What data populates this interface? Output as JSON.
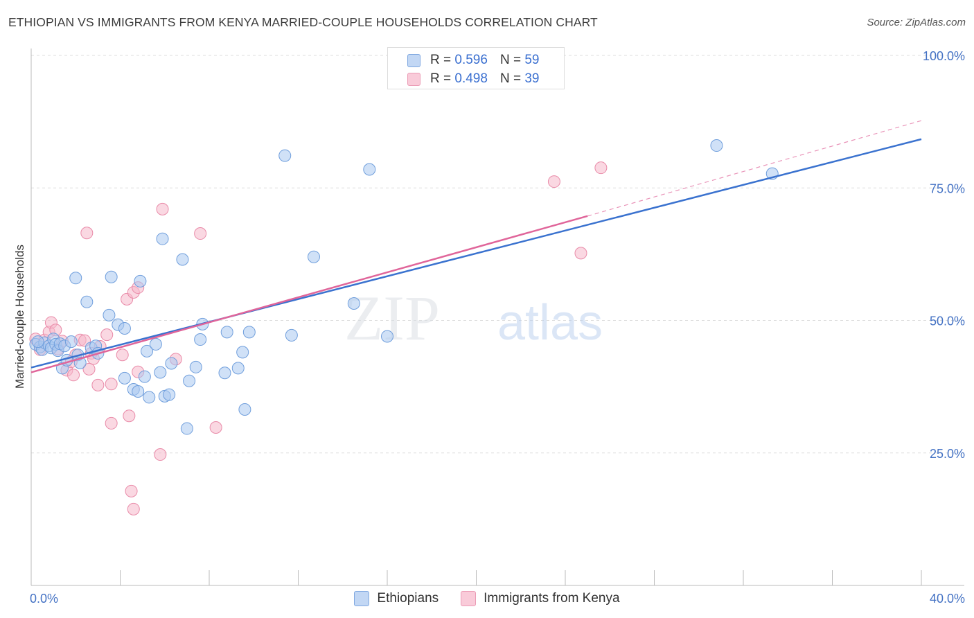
{
  "header": {
    "title": "ETHIOPIAN VS IMMIGRANTS FROM KENYA MARRIED-COUPLE HOUSEHOLDS CORRELATION CHART",
    "source": "Source: ZipAtlas.com"
  },
  "watermark": {
    "zip": "ZIP",
    "atlas": "atlas"
  },
  "legend_top": {
    "rows": [
      {
        "r_label": "R =",
        "r_value": "0.596",
        "n_label": "N =",
        "n_value": "59"
      },
      {
        "r_label": "R =",
        "r_value": "0.498",
        "n_label": "N =",
        "n_value": "39"
      }
    ]
  },
  "colors": {
    "blue_fill": "#aac8f0",
    "blue_stroke": "#6f9edc",
    "blue_line": "#3a72cf",
    "pink_fill": "#f5b8cb",
    "pink_stroke": "#e98aa8",
    "pink_line": "#e0659a",
    "axis_text": "#4472c4",
    "grid": "#dddddd"
  },
  "chart_data": {
    "type": "scatter",
    "title": "ETHIOPIAN VS IMMIGRANTS FROM KENYA MARRIED-COUPLE HOUSEHOLDS CORRELATION CHART",
    "xlabel": "",
    "ylabel": "Married-couple Households",
    "xlim": [
      0,
      40
    ],
    "ylim": [
      0,
      105
    ],
    "x_tick_labels": [
      {
        "value": 0,
        "label": "0.0%"
      },
      {
        "value": 40,
        "label": "40.0%"
      }
    ],
    "y_tick_labels": [
      {
        "value": 100,
        "label": "100.0%"
      },
      {
        "value": 75,
        "label": "75.0%"
      },
      {
        "value": 50,
        "label": "50.0%"
      },
      {
        "value": 25,
        "label": "25.0%"
      }
    ],
    "grid": true,
    "legend_position": "bottom",
    "series": [
      {
        "name": "Ethiopians",
        "r": 0.596,
        "n": 59,
        "trend": {
          "x0": 0,
          "y0": 41.1,
          "x1": 40,
          "y1": 84.2,
          "dashed_extension": false
        },
        "points": [
          [
            0.2,
            45.5
          ],
          [
            0.4,
            45.0
          ],
          [
            0.5,
            44.5
          ],
          [
            0.6,
            45.8
          ],
          [
            0.8,
            45.2
          ],
          [
            0.9,
            44.8
          ],
          [
            1.0,
            46.5
          ],
          [
            1.1,
            45.5
          ],
          [
            1.2,
            44.3
          ],
          [
            1.3,
            45.6
          ],
          [
            1.4,
            41.0
          ],
          [
            1.5,
            45.2
          ],
          [
            1.6,
            42.5
          ],
          [
            1.8,
            46.0
          ],
          [
            2.0,
            58.0
          ],
          [
            2.1,
            43.5
          ],
          [
            2.2,
            42.0
          ],
          [
            2.5,
            53.5
          ],
          [
            2.7,
            44.8
          ],
          [
            2.9,
            45.2
          ],
          [
            3.0,
            43.8
          ],
          [
            3.5,
            51.0
          ],
          [
            3.6,
            58.2
          ],
          [
            3.9,
            49.2
          ],
          [
            4.2,
            48.5
          ],
          [
            4.2,
            39.1
          ],
          [
            4.6,
            37.0
          ],
          [
            4.8,
            36.6
          ],
          [
            4.9,
            57.4
          ],
          [
            5.1,
            39.4
          ],
          [
            5.2,
            44.2
          ],
          [
            5.3,
            35.5
          ],
          [
            5.6,
            45.5
          ],
          [
            5.8,
            40.2
          ],
          [
            5.9,
            65.4
          ],
          [
            6.0,
            35.7
          ],
          [
            6.2,
            36.0
          ],
          [
            6.3,
            41.9
          ],
          [
            6.8,
            61.5
          ],
          [
            7.0,
            29.6
          ],
          [
            7.1,
            38.6
          ],
          [
            7.4,
            41.2
          ],
          [
            7.6,
            46.4
          ],
          [
            7.7,
            49.3
          ],
          [
            8.7,
            40.1
          ],
          [
            8.8,
            47.8
          ],
          [
            9.3,
            41.0
          ],
          [
            9.5,
            44.0
          ],
          [
            9.6,
            33.2
          ],
          [
            9.8,
            47.8
          ],
          [
            11.4,
            81.1
          ],
          [
            11.7,
            47.2
          ],
          [
            12.7,
            62.0
          ],
          [
            14.5,
            53.2
          ],
          [
            15.2,
            78.5
          ],
          [
            16.0,
            47.0
          ],
          [
            30.8,
            83.0
          ],
          [
            33.3,
            77.7
          ],
          [
            0.3,
            46.0
          ]
        ]
      },
      {
        "name": "Immigrants from Kenya",
        "r": 0.498,
        "n": 39,
        "trend": {
          "x0": 0,
          "y0": 40.2,
          "x1": 25.0,
          "y1": 69.7,
          "dashed_extension": true,
          "dash_x1": 40,
          "dash_y1": 87.7
        },
        "points": [
          [
            0.2,
            46.5
          ],
          [
            0.4,
            44.5
          ],
          [
            0.6,
            46.3
          ],
          [
            0.8,
            47.8
          ],
          [
            0.9,
            49.6
          ],
          [
            1.1,
            48.2
          ],
          [
            1.2,
            44.6
          ],
          [
            1.4,
            46.1
          ],
          [
            1.6,
            40.6
          ],
          [
            1.8,
            42.2
          ],
          [
            1.9,
            39.7
          ],
          [
            2.0,
            43.5
          ],
          [
            2.2,
            46.3
          ],
          [
            2.4,
            46.2
          ],
          [
            2.5,
            66.5
          ],
          [
            2.7,
            43.8
          ],
          [
            2.8,
            42.8
          ],
          [
            2.6,
            40.8
          ],
          [
            3.1,
            45.1
          ],
          [
            3.0,
            37.8
          ],
          [
            3.4,
            47.3
          ],
          [
            3.6,
            38.0
          ],
          [
            3.6,
            30.6
          ],
          [
            4.1,
            43.5
          ],
          [
            4.3,
            54.0
          ],
          [
            4.4,
            32.0
          ],
          [
            4.6,
            55.3
          ],
          [
            4.5,
            17.8
          ],
          [
            4.8,
            56.2
          ],
          [
            4.8,
            40.3
          ],
          [
            5.8,
            24.7
          ],
          [
            5.9,
            71.0
          ],
          [
            6.5,
            42.7
          ],
          [
            7.6,
            66.4
          ],
          [
            8.3,
            29.8
          ],
          [
            4.6,
            14.4
          ],
          [
            23.5,
            76.2
          ],
          [
            24.7,
            62.7
          ],
          [
            25.6,
            78.8
          ]
        ]
      }
    ]
  },
  "bottom_legend": {
    "items": [
      {
        "label": "Ethiopians"
      },
      {
        "label": "Immigrants from Kenya"
      }
    ]
  }
}
